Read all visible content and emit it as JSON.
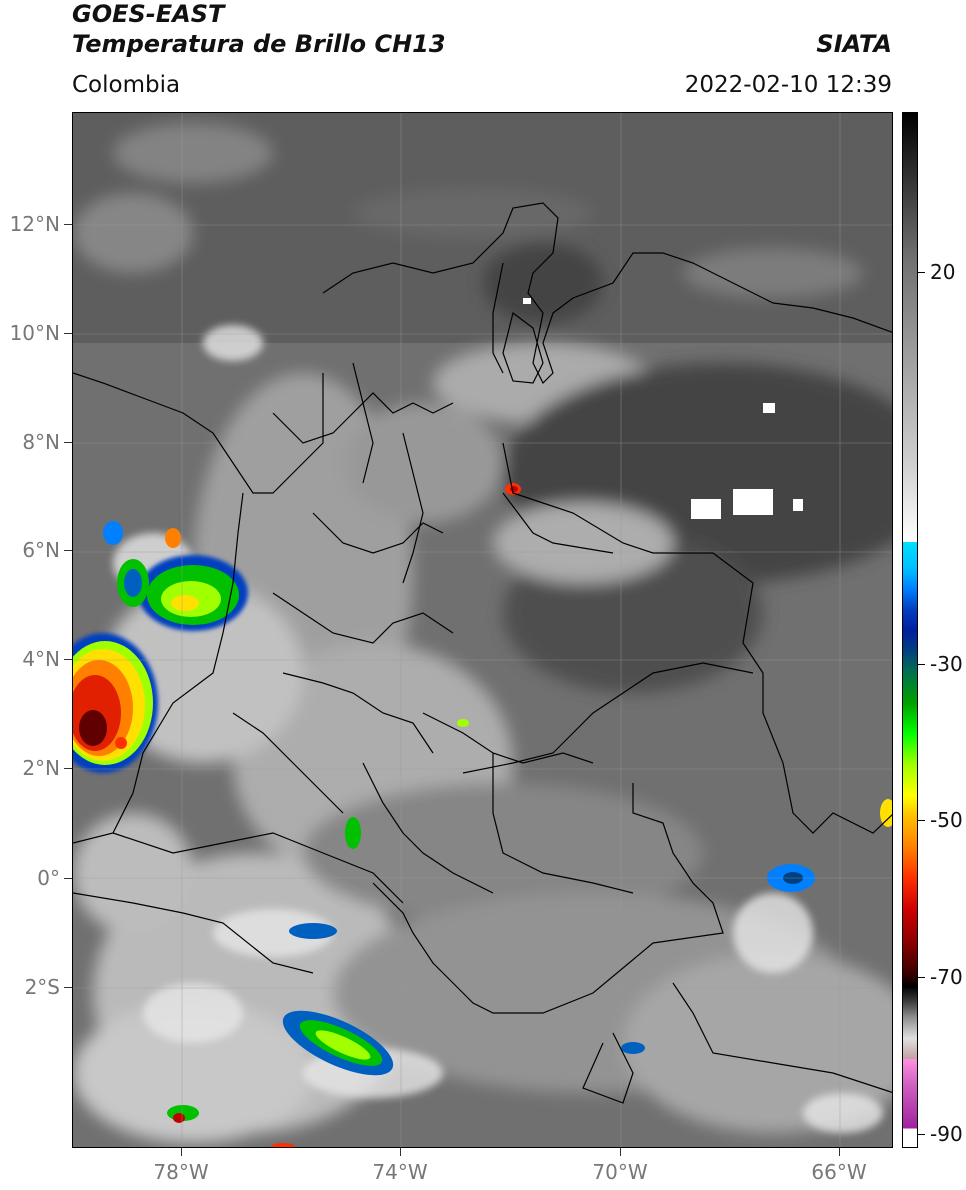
{
  "header": {
    "title_line1": "GOES-EAST",
    "title_line2": "Temperatura de Brillo CH13",
    "subtitle": "Colombia",
    "brand": "SIATA",
    "datetime": "2022-02-10 12:39"
  },
  "axes": {
    "lat_ticks": [
      "12°N",
      "10°N",
      "8°N",
      "6°N",
      "4°N",
      "2°N",
      "0°",
      "2°S"
    ],
    "lon_ticks": [
      "78°W",
      "74°W",
      "70°W",
      "66°W"
    ]
  },
  "colorbar": {
    "ticks": [
      "20",
      "-30",
      "-50",
      "-70",
      "-90"
    ],
    "colors": [
      "#ffffff",
      "#d060c0",
      "#ffa0e0",
      "#c8c8c8",
      "#000000",
      "#600000",
      "#c00000",
      "#ff3000",
      "#ff8000",
      "#ffe000",
      "#a0ff00",
      "#00c000",
      "#006040",
      "#0020a0",
      "#0080ff",
      "#00e0ff",
      "#ffffff",
      "#000000"
    ]
  },
  "colors": {
    "cloud_cold": "#ff2000",
    "cloud_core": "#600000",
    "cloud_mid": "#00c000",
    "cloud_edge": "#0040c0",
    "land_dark": "#3c3c3c",
    "cloud_white": "#e8e8e8"
  }
}
